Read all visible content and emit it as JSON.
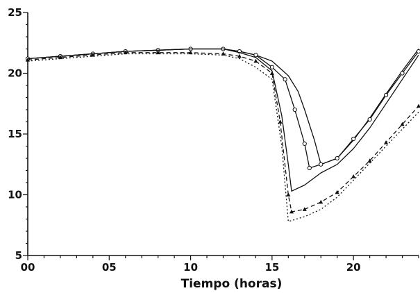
{
  "chart_data": {
    "type": "line",
    "xlabel": "Tiempo (horas)",
    "ylabel": "",
    "xlim": [
      0,
      24
    ],
    "ylim": [
      5,
      25
    ],
    "x_ticks": [
      0,
      5,
      10,
      15,
      20
    ],
    "x_tick_labels": [
      "00",
      "05",
      "10",
      "15",
      "20"
    ],
    "y_ticks": [
      5,
      10,
      15,
      20,
      25
    ],
    "y_tick_labels": [
      "5",
      "10",
      "15",
      "20",
      "25"
    ],
    "grid": false,
    "series": [
      {
        "style": "solid",
        "marker": "none",
        "points": [
          [
            0,
            21.2
          ],
          [
            2,
            21.4
          ],
          [
            4,
            21.6
          ],
          [
            6,
            21.8
          ],
          [
            8,
            21.9
          ],
          [
            10,
            22
          ],
          [
            12,
            22
          ],
          [
            13,
            21.8
          ],
          [
            14,
            21.5
          ],
          [
            15,
            21
          ],
          [
            16,
            19.8
          ],
          [
            16.6,
            18.5
          ],
          [
            17,
            17
          ],
          [
            17.6,
            14.5
          ],
          [
            18,
            12.5
          ],
          [
            19,
            13
          ],
          [
            20,
            14.5
          ],
          [
            21,
            16.3
          ],
          [
            22,
            18.3
          ],
          [
            23,
            20.2
          ],
          [
            24,
            22
          ]
        ]
      },
      {
        "style": "solid",
        "marker": "circle",
        "points": [
          [
            0,
            21.2
          ],
          [
            2,
            21.4
          ],
          [
            4,
            21.6
          ],
          [
            6,
            21.8
          ],
          [
            8,
            21.9
          ],
          [
            10,
            22
          ],
          [
            12,
            22
          ],
          [
            13,
            21.8
          ],
          [
            14,
            21.5
          ],
          [
            15,
            20.5
          ],
          [
            15.8,
            19.5
          ],
          [
            16.4,
            17
          ],
          [
            17,
            14.2
          ],
          [
            17.3,
            12.2
          ],
          [
            18,
            12.5
          ],
          [
            19,
            13
          ],
          [
            20,
            14.6
          ],
          [
            21,
            16.2
          ],
          [
            22,
            18.2
          ],
          [
            23,
            20
          ],
          [
            24,
            21.8
          ]
        ]
      },
      {
        "style": "solid",
        "marker": "none",
        "points": [
          [
            0,
            21.2
          ],
          [
            2,
            21.4
          ],
          [
            4,
            21.6
          ],
          [
            6,
            21.8
          ],
          [
            8,
            21.9
          ],
          [
            10,
            22
          ],
          [
            12,
            22
          ],
          [
            13,
            21.7
          ],
          [
            14,
            21.3
          ],
          [
            15,
            20.2
          ],
          [
            15.6,
            16.5
          ],
          [
            16,
            12.5
          ],
          [
            16.2,
            10.3
          ],
          [
            17,
            10.8
          ],
          [
            18,
            11.8
          ],
          [
            19,
            12.5
          ],
          [
            20,
            13.8
          ],
          [
            21,
            15.5
          ],
          [
            22,
            17.5
          ],
          [
            23,
            19.5
          ],
          [
            24,
            21.5
          ]
        ]
      },
      {
        "style": "dashed",
        "marker": "triangle",
        "points": [
          [
            0,
            21.1
          ],
          [
            2,
            21.3
          ],
          [
            4,
            21.5
          ],
          [
            6,
            21.7
          ],
          [
            8,
            21.7
          ],
          [
            10,
            21.7
          ],
          [
            12,
            21.6
          ],
          [
            13,
            21.4
          ],
          [
            14,
            21
          ],
          [
            15,
            20
          ],
          [
            15.5,
            16
          ],
          [
            16,
            10
          ],
          [
            16.2,
            8.6
          ],
          [
            17,
            8.8
          ],
          [
            18,
            9.4
          ],
          [
            19,
            10.2
          ],
          [
            20,
            11.5
          ],
          [
            21,
            12.8
          ],
          [
            22,
            14.3
          ],
          [
            23,
            15.8
          ],
          [
            24,
            17.3
          ]
        ]
      },
      {
        "style": "dotted",
        "marker": "none",
        "points": [
          [
            0,
            21
          ],
          [
            2,
            21.2
          ],
          [
            4,
            21.4
          ],
          [
            6,
            21.6
          ],
          [
            8,
            21.6
          ],
          [
            10,
            21.6
          ],
          [
            12,
            21.5
          ],
          [
            13,
            21.2
          ],
          [
            14,
            20.5
          ],
          [
            15,
            19.5
          ],
          [
            15.6,
            14
          ],
          [
            16,
            7.8
          ],
          [
            17,
            8.2
          ],
          [
            18,
            8.8
          ],
          [
            19,
            9.8
          ],
          [
            20,
            11.2
          ],
          [
            21,
            12.6
          ],
          [
            22,
            14
          ],
          [
            23,
            15.4
          ],
          [
            24,
            16.8
          ]
        ]
      }
    ]
  }
}
